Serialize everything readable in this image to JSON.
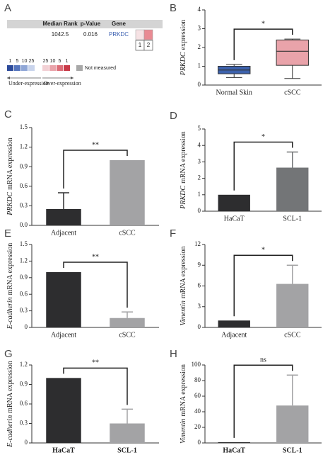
{
  "table_panel": {
    "label": "A",
    "header": [
      "Median Rank",
      "p-Value",
      "Gene"
    ],
    "row": [
      "1042.5",
      "0.016",
      "PRKDC"
    ],
    "cells": [
      "1",
      "2"
    ],
    "legend_under": [
      "1",
      "5",
      "10",
      "25"
    ],
    "legend_over": [
      "25",
      "10",
      "5",
      "1"
    ],
    "not_measured": "Not measured",
    "under": "Under-expression",
    "over": "Over-expression"
  },
  "chart_data": [
    {
      "type": "box",
      "label": "B",
      "ylabel": [
        "PRKDC",
        "expression"
      ],
      "categories": [
        "Normal Skin",
        "cSCC"
      ],
      "colors": [
        "#3d62ad",
        "#e9a3aa"
      ],
      "boxes": [
        {
          "min": 0.4,
          "q1": 0.6,
          "median": 0.8,
          "q3": 1.0,
          "max": 1.1
        },
        {
          "min": 0.35,
          "q1": 1.05,
          "median": 1.8,
          "q3": 2.4,
          "max": 2.45
        }
      ],
      "ylim": [
        0,
        4
      ],
      "yticks": [
        0,
        1,
        2,
        3,
        4
      ],
      "significance": "*"
    },
    {
      "type": "bar",
      "label": "C",
      "ylabel": [
        "PRKDC",
        "mRNA expression"
      ],
      "categories": [
        "Adjacent",
        "cSCC"
      ],
      "colors": [
        "#2d2d2f",
        "#a3a3a5"
      ],
      "values": [
        0.25,
        1.0
      ],
      "errors": [
        0.25,
        null
      ],
      "ylim": [
        0,
        1.5
      ],
      "yticks": [
        {
          "value": 0,
          "label": "0.0"
        },
        0.3,
        0.6,
        0.9,
        1.2,
        1.5
      ],
      "significance": "**"
    },
    {
      "type": "bar",
      "label": "D",
      "ylabel": [
        "PRKDC",
        "mRNA expression"
      ],
      "categories": [
        "HaCaT",
        "SCL-1"
      ],
      "colors": [
        "#2d2d2f",
        "#737577"
      ],
      "values": [
        1.0,
        2.65
      ],
      "errors": [
        null,
        0.95
      ],
      "ylim": [
        0,
        5
      ],
      "yticks": [
        0,
        1,
        2,
        3,
        4,
        5
      ],
      "significance": "*"
    },
    {
      "type": "bar",
      "label": "E",
      "ylabel": [
        "E-cadherin",
        "mRNA expression"
      ],
      "categories": [
        "Adjacent",
        "cSCC"
      ],
      "colors": [
        "#2d2d2f",
        "#a3a3a5"
      ],
      "values": [
        1.0,
        0.17
      ],
      "errors": [
        null,
        0.11
      ],
      "ylim": [
        0,
        1.5
      ],
      "yticks": [
        0,
        0.3,
        0.6,
        0.9,
        1.2,
        1.5
      ],
      "significance": "**"
    },
    {
      "type": "bar",
      "label": "F",
      "ylabel": [
        "Vimentin",
        "mRNA expression"
      ],
      "categories": [
        "Adjacent",
        "cSCC"
      ],
      "colors": [
        "#2d2d2f",
        "#a3a3a5"
      ],
      "values": [
        1.0,
        6.3
      ],
      "errors": [
        null,
        2.7
      ],
      "ylim": [
        0,
        12
      ],
      "yticks": [
        0,
        3,
        6,
        9,
        12
      ],
      "significance": "*"
    },
    {
      "type": "bar",
      "label": "G",
      "ylabel": [
        "E-cadherin",
        "mRNA expression"
      ],
      "categories": [
        "HaCaT",
        "SCL-1"
      ],
      "colors": [
        "#2d2d2f",
        "#a3a3a5"
      ],
      "values": [
        1.0,
        0.3
      ],
      "errors": [
        null,
        0.22
      ],
      "ylim": [
        0,
        1.2
      ],
      "yticks": [
        0,
        0.3,
        0.6,
        0.9,
        1.2
      ],
      "significance": "**"
    },
    {
      "type": "bar",
      "label": "H",
      "ylabel": [
        "Vimentin",
        "mRNA expression"
      ],
      "categories": [
        "HaCaT",
        "SCL-1"
      ],
      "colors": [
        "#2d2d2f",
        "#a3a3a5"
      ],
      "values": [
        1,
        48
      ],
      "errors": [
        null,
        39
      ],
      "ylim": [
        0,
        100
      ],
      "yticks": [
        0,
        20,
        40,
        60,
        80,
        100
      ],
      "significance": "ns"
    }
  ]
}
